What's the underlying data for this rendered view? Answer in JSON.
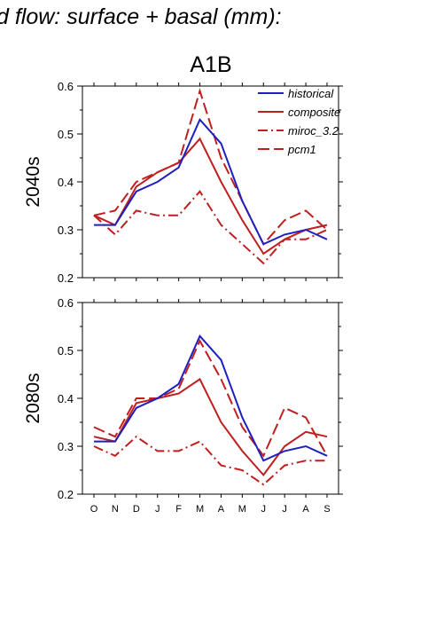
{
  "figure": {
    "title": "d flow: surface + basal (mm):",
    "scenario": "A1B"
  },
  "legend": [
    {
      "name": "historical",
      "color": "#1f1fbf",
      "dash": "solid"
    },
    {
      "name": "composite",
      "color": "#bf1f1f",
      "dash": "solid"
    },
    {
      "name": "miroc_3.2",
      "color": "#bf1f1f",
      "dash": "dashdot"
    },
    {
      "name": "pcm1",
      "color": "#bf1f1f",
      "dash": "dash"
    }
  ],
  "chart_data": [
    {
      "type": "line",
      "panel_label": "2040s",
      "categories": [
        "O",
        "N",
        "D",
        "J",
        "F",
        "M",
        "A",
        "M",
        "J",
        "J",
        "A",
        "S"
      ],
      "ylim": [
        0.2,
        0.6
      ],
      "yticks": [
        "0.2",
        "0.3",
        "0.4",
        "0.5",
        "0.6"
      ],
      "series": [
        {
          "name": "historical",
          "values": [
            0.31,
            0.31,
            0.38,
            0.4,
            0.43,
            0.53,
            0.48,
            0.36,
            0.27,
            0.29,
            0.3,
            0.28
          ]
        },
        {
          "name": "composite",
          "values": [
            0.33,
            0.31,
            0.39,
            0.42,
            0.44,
            0.49,
            0.4,
            0.32,
            0.25,
            0.28,
            0.3,
            0.31
          ]
        },
        {
          "name": "miroc_3.2",
          "values": [
            0.33,
            0.29,
            0.34,
            0.33,
            0.33,
            0.38,
            0.31,
            0.27,
            0.23,
            0.28,
            0.28,
            0.3
          ]
        },
        {
          "name": "pcm1",
          "values": [
            0.33,
            0.34,
            0.4,
            0.42,
            0.44,
            0.59,
            0.45,
            0.36,
            0.27,
            0.32,
            0.34,
            0.3
          ]
        }
      ]
    },
    {
      "type": "line",
      "panel_label": "2080s",
      "categories": [
        "O",
        "N",
        "D",
        "J",
        "F",
        "M",
        "A",
        "M",
        "J",
        "J",
        "A",
        "S"
      ],
      "ylim": [
        0.2,
        0.6
      ],
      "yticks": [
        "0.2",
        "0.3",
        "0.4",
        "0.5",
        "0.6"
      ],
      "series": [
        {
          "name": "historical",
          "values": [
            0.31,
            0.31,
            0.38,
            0.4,
            0.43,
            0.53,
            0.48,
            0.36,
            0.27,
            0.29,
            0.3,
            0.28
          ]
        },
        {
          "name": "composite",
          "values": [
            0.32,
            0.31,
            0.39,
            0.4,
            0.41,
            0.44,
            0.35,
            0.29,
            0.24,
            0.3,
            0.33,
            0.32
          ]
        },
        {
          "name": "miroc_3.2",
          "values": [
            0.3,
            0.28,
            0.32,
            0.29,
            0.29,
            0.31,
            0.26,
            0.25,
            0.22,
            0.26,
            0.27,
            0.27
          ]
        },
        {
          "name": "pcm1",
          "values": [
            0.34,
            0.32,
            0.4,
            0.4,
            0.42,
            0.52,
            0.44,
            0.34,
            0.28,
            0.38,
            0.36,
            0.28
          ]
        }
      ]
    }
  ]
}
